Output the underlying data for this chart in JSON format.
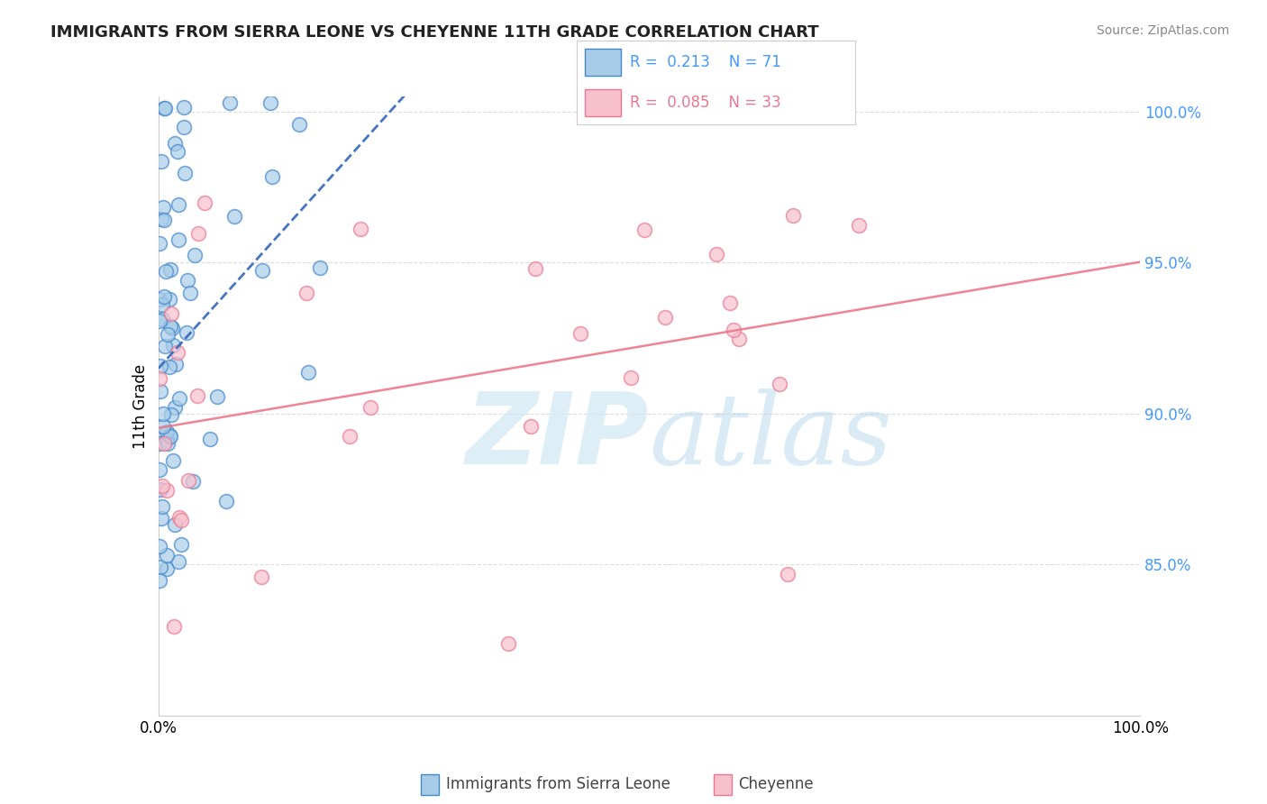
{
  "title": "IMMIGRANTS FROM SIERRA LEONE VS CHEYENNE 11TH GRADE CORRELATION CHART",
  "source": "Source: ZipAtlas.com",
  "ylabel": "11th Grade",
  "legend_entries": [
    {
      "label": "Immigrants from Sierra Leone",
      "R": 0.213,
      "N": 71
    },
    {
      "label": "Cheyenne",
      "R": 0.085,
      "N": 33
    }
  ],
  "xlim": [
    0.0,
    1.0
  ],
  "ylim": [
    0.8,
    1.005
  ],
  "yticks": [
    0.85,
    0.9,
    0.95,
    1.0
  ],
  "ytick_labels": [
    "85.0%",
    "90.0%",
    "95.0%",
    "100.0%"
  ],
  "grid_color": "#dddddd",
  "blue_face_color": "#a8cce8",
  "blue_edge_color": "#4488cc",
  "pink_face_color": "#f8c0cc",
  "pink_edge_color": "#e87890",
  "blue_line_color": "#3366bb",
  "pink_line_color": "#ee7788",
  "watermark_color": "#d0e8f5",
  "bg_color": "#ffffff",
  "title_color": "#222222",
  "source_color": "#888888",
  "right_tick_color": "#4499ff"
}
